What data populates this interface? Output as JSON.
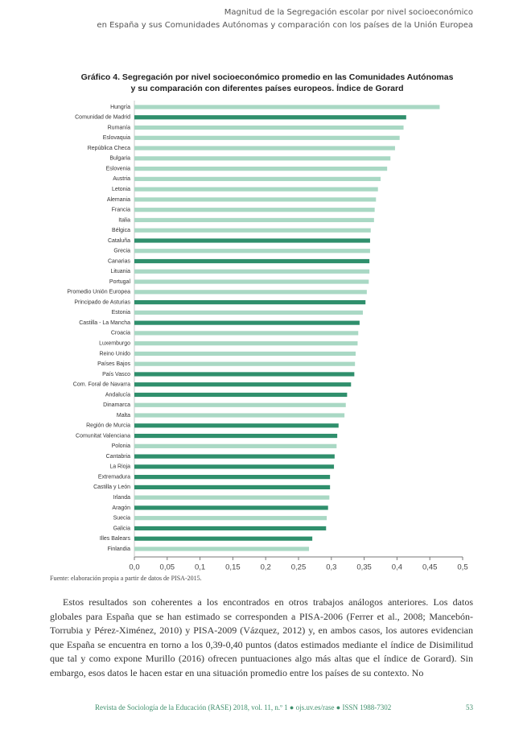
{
  "header": {
    "line1": "Magnitud de la Segregación escolar por nivel socioeconómico",
    "line2": "en España y sus Comunidades Autónomas y comparación con los países de la Unión Europea"
  },
  "chart_data": {
    "type": "barh",
    "title": [
      "Gráfico 4. Segregación por nivel socioeconómico promedio en las Comunidades Autónomas",
      "y su comparación con diferentes países europeos. Índice de Gorard"
    ],
    "categories": [
      "Hungría",
      "Comunidad de Madrid",
      "Rumanía",
      "Eslovaquia",
      "República Checa",
      "Bulgaria",
      "Eslovenia",
      "Austria",
      "Letonia",
      "Alemania",
      "Francia",
      "Italia",
      "Bélgica",
      "Cataluña",
      "Grecia",
      "Canarias",
      "Lituania",
      "Portugal",
      "Promedio Unión Europea",
      "Principado de Asturias",
      "Estonia",
      "Castilla - La Mancha",
      "Croacia",
      "Luxemburgo",
      "Reino Unido",
      "Países Bajos",
      "País Vasco",
      "Com. Foral de Navarra",
      "Andalucía",
      "Dinamarca",
      "Malta",
      "Región de Murcia",
      "Comunitat Valenciana",
      "Polonia",
      "Cantabria",
      "La Rioja",
      "Extremadura",
      "Castilla y León",
      "Irlanda",
      "Aragón",
      "Suecia",
      "Galicia",
      "Illes Balears",
      "Finlandia"
    ],
    "values": [
      0.465,
      0.414,
      0.41,
      0.404,
      0.397,
      0.39,
      0.385,
      0.375,
      0.371,
      0.368,
      0.366,
      0.365,
      0.36,
      0.359,
      0.359,
      0.358,
      0.358,
      0.357,
      0.354,
      0.352,
      0.348,
      0.343,
      0.341,
      0.34,
      0.337,
      0.336,
      0.335,
      0.33,
      0.324,
      0.322,
      0.32,
      0.311,
      0.309,
      0.308,
      0.305,
      0.304,
      0.298,
      0.298,
      0.297,
      0.295,
      0.293,
      0.292,
      0.271,
      0.266
    ],
    "colors": [
      "#a9d8c4",
      "#2f8f6c",
      "#a9d8c4",
      "#a9d8c4",
      "#a9d8c4",
      "#a9d8c4",
      "#a9d8c4",
      "#a9d8c4",
      "#a9d8c4",
      "#a9d8c4",
      "#a9d8c4",
      "#a9d8c4",
      "#a9d8c4",
      "#2f8f6c",
      "#a9d8c4",
      "#2f8f6c",
      "#a9d8c4",
      "#a9d8c4",
      "#a9d8c4",
      "#2f8f6c",
      "#a9d8c4",
      "#2f8f6c",
      "#a9d8c4",
      "#a9d8c4",
      "#a9d8c4",
      "#a9d8c4",
      "#2f8f6c",
      "#2f8f6c",
      "#2f8f6c",
      "#a9d8c4",
      "#a9d8c4",
      "#2f8f6c",
      "#2f8f6c",
      "#a9d8c4",
      "#2f8f6c",
      "#2f8f6c",
      "#2f8f6c",
      "#2f8f6c",
      "#a9d8c4",
      "#2f8f6c",
      "#a9d8c4",
      "#2f8f6c",
      "#2f8f6c",
      "#a9d8c4"
    ],
    "xlim": [
      0,
      0.5
    ],
    "xticks": [
      {
        "value": 0,
        "label": "0,0"
      },
      {
        "value": 0.05,
        "label": "0,05"
      },
      {
        "value": 0.1,
        "label": "0,1"
      },
      {
        "value": 0.15,
        "label": "0,15"
      },
      {
        "value": 0.2,
        "label": "0,2"
      },
      {
        "value": 0.25,
        "label": "0,25"
      },
      {
        "value": 0.3,
        "label": "0,3"
      },
      {
        "value": 0.35,
        "label": "0,35"
      },
      {
        "value": 0.4,
        "label": "0,4"
      },
      {
        "value": 0.45,
        "label": "0,45"
      },
      {
        "value": 0.5,
        "label": "0,5"
      }
    ],
    "grid": false
  },
  "source": "Fuente: elaboración propia a partir de datos de PISA-2015.",
  "body": "Estos resultados son coherentes a los encontrados en otros trabajos análogos anteriores. Los datos globales para España que se han estimado se corresponden a PISA-2006 (Ferrer et al., 2008; Mancebón-Torrubia y Pérez-Ximénez, 2010) y PISA-2009 (Vázquez, 2012) y, en ambos casos, los autores evidencian que España se encuentra en torno a los 0,39-0,40 puntos (datos estimados mediante el índice de Disimilitud que tal y como expone Murillo (2016) ofrecen puntuaciones algo más altas que el índice de Gorard). Sin embargo, esos datos le hacen estar en una situación promedio entre los países de su contexto. No",
  "footer": {
    "journal": "Revista de Sociología de la Educación (RASE) 2018, vol. 11, n.º 1 ● ojs.uv.es/rase ● ISSN 1988-7302",
    "page": "53"
  }
}
